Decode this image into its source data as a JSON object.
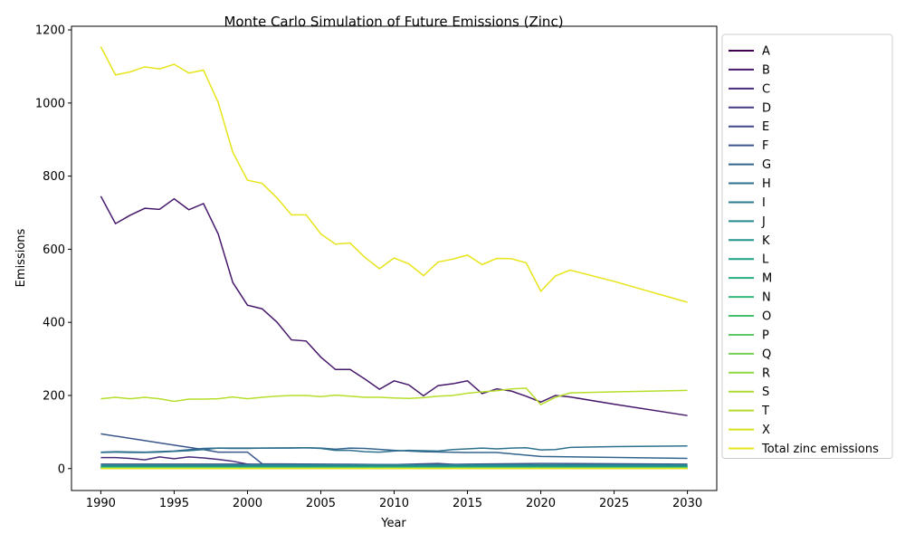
{
  "chart_data": {
    "type": "line",
    "title": "Monte Carlo Simulation of Future Emissions (Zinc)",
    "xlabel": "Year",
    "ylabel": "Emissions",
    "xlim": [
      1988,
      2032
    ],
    "ylim": [
      -60,
      1210
    ],
    "xticks": [
      1990,
      1995,
      2000,
      2005,
      2010,
      2015,
      2020,
      2025,
      2030
    ],
    "yticks": [
      0,
      200,
      400,
      600,
      800,
      1000,
      1200
    ],
    "legend_position": "outside-right",
    "grid": false,
    "series": [
      {
        "name": "A",
        "color": "#440154",
        "x": [
          1990,
          2030
        ],
        "values": [
          0,
          0
        ]
      },
      {
        "name": "B",
        "color": "#46186b",
        "x": [
          1990,
          1991,
          1992,
          1993,
          1994,
          1995,
          1996,
          1997,
          1998,
          1999,
          2000,
          2001,
          2002,
          2003,
          2004,
          2005,
          2006,
          2007,
          2008,
          2009,
          2010,
          2011,
          2012,
          2013,
          2014,
          2015,
          2016,
          2017,
          2018,
          2019,
          2020,
          2021,
          2022,
          2025,
          2030
        ],
        "values": [
          745,
          670,
          693,
          712,
          709,
          738,
          708,
          725,
          642,
          509,
          447,
          437,
          401,
          352,
          349,
          305,
          271,
          271,
          245,
          217,
          240,
          229,
          199,
          227,
          232,
          240,
          205,
          218,
          212,
          198,
          182,
          200,
          196,
          176,
          145
        ]
      },
      {
        "name": "C",
        "color": "#472a7a",
        "x": [
          1990,
          1991,
          1992,
          1993,
          1994,
          1995,
          1996,
          1997,
          1998,
          1999,
          2000,
          2001,
          2002,
          2005,
          2010,
          2015,
          2020,
          2030
        ],
        "values": [
          30,
          30,
          28,
          24,
          32,
          27,
          32,
          29,
          25,
          20,
          12,
          8,
          6,
          6,
          6,
          6,
          6,
          6
        ]
      },
      {
        "name": "D",
        "color": "#453882",
        "x": [
          1990,
          2030
        ],
        "values": [
          3,
          3
        ]
      },
      {
        "name": "E",
        "color": "#3f4788",
        "x": [
          1990,
          2000,
          2010,
          2013,
          2015,
          2020,
          2030
        ],
        "values": [
          12,
          12,
          11,
          14,
          9,
          9,
          9
        ]
      },
      {
        "name": "F",
        "color": "#39558c",
        "x": [
          1990,
          1995,
          1997,
          1998,
          2000,
          2001,
          2005,
          2010,
          2015,
          2020,
          2030
        ],
        "values": [
          95,
          64,
          52,
          45,
          45,
          13,
          12,
          11,
          12,
          14,
          12
        ]
      },
      {
        "name": "G",
        "color": "#32648e",
        "x": [
          1990,
          1991,
          1993,
          1995,
          1997,
          1998,
          2001,
          2004,
          2005,
          2006,
          2007,
          2008,
          2010,
          2012,
          2015,
          2017,
          2020,
          2030
        ],
        "values": [
          45,
          46,
          45,
          48,
          55,
          56,
          56,
          57,
          56,
          53,
          56,
          55,
          50,
          46,
          44,
          44,
          33,
          28
        ]
      },
      {
        "name": "H",
        "color": "#2d718e",
        "x": [
          1990,
          1991,
          1992,
          1993,
          1994,
          1995,
          1996,
          1997,
          1998,
          1999,
          2000,
          2001,
          2002,
          2003,
          2004,
          2005,
          2006,
          2007,
          2008,
          2009,
          2010,
          2011,
          2012,
          2013,
          2014,
          2015,
          2016,
          2017,
          2018,
          2019,
          2020,
          2021,
          2022,
          2025,
          2030
        ],
        "values": [
          44,
          45,
          44,
          44,
          45,
          47,
          49,
          52,
          56,
          55,
          55,
          56,
          56,
          56,
          57,
          55,
          50,
          50,
          46,
          45,
          48,
          50,
          49,
          48,
          52,
          54,
          56,
          54,
          56,
          57,
          51,
          52,
          58,
          60,
          62
        ]
      },
      {
        "name": "I",
        "color": "#297d8e",
        "x": [
          1990,
          2030
        ],
        "values": [
          8,
          8
        ]
      },
      {
        "name": "J",
        "color": "#25898e",
        "x": [
          1990,
          2030
        ],
        "values": [
          10,
          10
        ]
      },
      {
        "name": "K",
        "color": "#21948c",
        "x": [
          1990,
          2030
        ],
        "values": [
          5,
          5
        ]
      },
      {
        "name": "L",
        "color": "#1fa187",
        "x": [
          1990,
          2030
        ],
        "values": [
          4,
          4
        ]
      },
      {
        "name": "M",
        "color": "#26ad81",
        "x": [
          1990,
          2030
        ],
        "values": [
          3,
          3
        ]
      },
      {
        "name": "N",
        "color": "#35b779",
        "x": [
          1990,
          2030
        ],
        "values": [
          2,
          2
        ]
      },
      {
        "name": "O",
        "color": "#48c16e",
        "x": [
          1990,
          2030
        ],
        "values": [
          2,
          2
        ]
      },
      {
        "name": "P",
        "color": "#5ec962",
        "x": [
          1990,
          2030
        ],
        "values": [
          1,
          1
        ]
      },
      {
        "name": "Q",
        "color": "#74d055",
        "x": [
          1990,
          2030
        ],
        "values": [
          1,
          1
        ]
      },
      {
        "name": "R",
        "color": "#90d743",
        "x": [
          1990,
          2030
        ],
        "values": [
          1,
          1
        ]
      },
      {
        "name": "S",
        "color": "#addc30",
        "x": [
          1990,
          2030
        ],
        "values": [
          0,
          0
        ]
      },
      {
        "name": "T",
        "color": "#b5de2b",
        "x": [
          1990,
          1991,
          1992,
          1993,
          1994,
          1995,
          1996,
          1997,
          1998,
          1999,
          2000,
          2001,
          2002,
          2003,
          2004,
          2005,
          2006,
          2007,
          2008,
          2009,
          2010,
          2011,
          2012,
          2013,
          2014,
          2015,
          2016,
          2017,
          2018,
          2019,
          2020,
          2021,
          2022,
          2025,
          2030
        ],
        "values": [
          191,
          195,
          191,
          195,
          191,
          184,
          190,
          190,
          191,
          196,
          191,
          195,
          198,
          200,
          200,
          197,
          201,
          198,
          195,
          195,
          193,
          192,
          194,
          198,
          200,
          206,
          210,
          213,
          218,
          220,
          175,
          195,
          207,
          210,
          214
        ]
      },
      {
        "name": "X",
        "color": "#d8e219",
        "x": [
          1990,
          2030
        ],
        "values": [
          0,
          0
        ]
      },
      {
        "name": "Total zinc emissions",
        "color": "#e7e419",
        "x": [
          1990,
          1991,
          1992,
          1993,
          1994,
          1995,
          1996,
          1997,
          1998,
          1999,
          2000,
          2001,
          2002,
          2003,
          2004,
          2005,
          2006,
          2007,
          2008,
          2009,
          2010,
          2011,
          2012,
          2013,
          2014,
          2015,
          2016,
          2017,
          2018,
          2019,
          2020,
          2021,
          2022,
          2025,
          2030
        ],
        "values": [
          1154,
          1077,
          1085,
          1099,
          1093,
          1106,
          1082,
          1090,
          1002,
          865,
          789,
          780,
          741,
          694,
          694,
          642,
          614,
          617,
          578,
          547,
          576,
          560,
          528,
          565,
          573,
          584,
          558,
          575,
          574,
          563,
          485,
          527,
          543,
          512,
          455
        ]
      }
    ]
  }
}
